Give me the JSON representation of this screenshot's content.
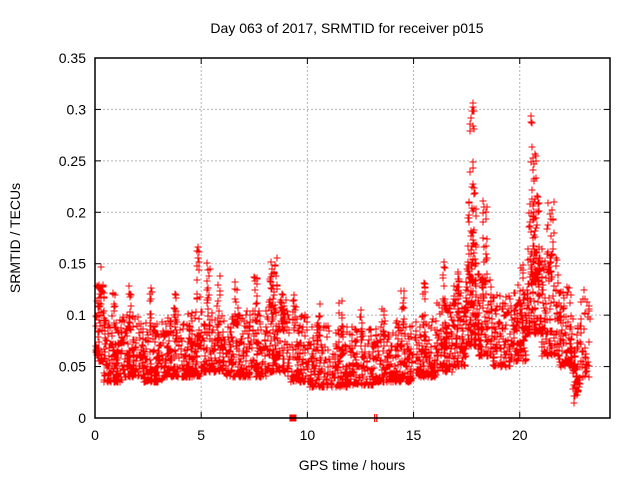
{
  "figure": {
    "background_color": "#ffffff",
    "text_color": "#000000"
  },
  "chart_data": {
    "type": "scatter",
    "title": "Day 063 of 2017, SRMTID for receiver p015",
    "xlabel": "GPS time / hours",
    "ylabel": "SRMTID / TECUs",
    "xlim": [
      0,
      24.25
    ],
    "ylim": [
      0,
      0.35
    ],
    "xticks": {
      "values": [
        0,
        5,
        10,
        15,
        20
      ],
      "labels": [
        "0",
        "5",
        "10",
        "15",
        "20"
      ]
    },
    "yticks": {
      "values": [
        0,
        0.05,
        0.1,
        0.15,
        0.2,
        0.25,
        0.3,
        0.35
      ],
      "labels": [
        "0",
        "0.05",
        "0.1",
        "0.15",
        "0.2",
        "0.25",
        "0.3",
        "0.35"
      ]
    },
    "grid": {
      "visible": true,
      "color": "#b4b4b4",
      "dash": [
        2,
        2
      ]
    },
    "frame_color": "#000000",
    "legend": {
      "visible": false
    },
    "marker": {
      "shape": "plus",
      "color": "#ff0000",
      "size": 7,
      "stroke_width": 1
    },
    "series_name": "SRMTID",
    "cluster_format": "[x_start_hours, x_end_hours, n_points, y_min_TECU, y_max_TECU, low_bias_skew]",
    "point_generator": {
      "seed": 20170063,
      "clusters": [
        [
          0.05,
          0.5,
          70,
          0.055,
          0.135,
          1.6
        ],
        [
          0.1,
          0.3,
          8,
          0.1,
          0.148,
          1.0
        ],
        [
          0.4,
          1.3,
          120,
          0.035,
          0.095,
          1.8
        ],
        [
          0.8,
          1.0,
          10,
          0.08,
          0.122,
          1.2
        ],
        [
          1.3,
          2.3,
          130,
          0.04,
          0.1,
          1.8
        ],
        [
          1.55,
          1.7,
          12,
          0.09,
          0.13,
          1.2
        ],
        [
          2.3,
          3.3,
          125,
          0.035,
          0.095,
          1.8
        ],
        [
          2.55,
          2.7,
          12,
          0.085,
          0.128,
          1.2
        ],
        [
          3.3,
          4.3,
          120,
          0.04,
          0.1,
          1.8
        ],
        [
          3.7,
          3.85,
          10,
          0.09,
          0.122,
          1.2
        ],
        [
          4.3,
          5.1,
          110,
          0.04,
          0.105,
          1.8
        ],
        [
          4.75,
          4.95,
          16,
          0.095,
          0.168,
          1.1
        ],
        [
          5.1,
          6.1,
          120,
          0.045,
          0.105,
          1.8
        ],
        [
          5.25,
          5.4,
          14,
          0.095,
          0.152,
          1.1
        ],
        [
          5.75,
          5.9,
          10,
          0.09,
          0.14,
          1.2
        ],
        [
          6.1,
          7.1,
          120,
          0.04,
          0.1,
          1.8
        ],
        [
          6.6,
          6.8,
          14,
          0.09,
          0.137,
          1.2
        ],
        [
          7.1,
          8.1,
          120,
          0.04,
          0.105,
          1.8
        ],
        [
          7.5,
          7.65,
          12,
          0.095,
          0.147,
          1.1
        ],
        [
          8.1,
          9.1,
          130,
          0.045,
          0.115,
          1.7
        ],
        [
          8.25,
          8.6,
          30,
          0.1,
          0.158,
          1.0
        ],
        [
          8.75,
          8.9,
          10,
          0.09,
          0.126,
          1.2
        ],
        [
          9.1,
          10.1,
          110,
          0.035,
          0.1,
          1.9
        ],
        [
          9.3,
          9.45,
          10,
          0.085,
          0.122,
          1.2
        ],
        [
          10.1,
          11.1,
          110,
          0.03,
          0.09,
          1.9
        ],
        [
          10.45,
          10.6,
          10,
          0.08,
          0.115,
          1.2
        ],
        [
          11.1,
          12.1,
          110,
          0.03,
          0.09,
          1.9
        ],
        [
          11.5,
          11.65,
          10,
          0.08,
          0.115,
          1.2
        ],
        [
          12.1,
          13.1,
          110,
          0.032,
          0.09,
          1.9
        ],
        [
          12.45,
          12.6,
          8,
          0.078,
          0.108,
          1.2
        ],
        [
          13.1,
          14.1,
          110,
          0.035,
          0.092,
          1.9
        ],
        [
          13.5,
          13.65,
          8,
          0.08,
          0.108,
          1.2
        ],
        [
          14.1,
          15.1,
          115,
          0.035,
          0.096,
          1.8
        ],
        [
          14.4,
          14.55,
          10,
          0.085,
          0.126,
          1.2
        ],
        [
          15.1,
          16.1,
          120,
          0.04,
          0.1,
          1.8
        ],
        [
          15.45,
          15.6,
          10,
          0.09,
          0.132,
          1.2
        ],
        [
          16.1,
          16.9,
          110,
          0.045,
          0.112,
          1.7
        ],
        [
          16.35,
          16.5,
          12,
          0.1,
          0.152,
          1.1
        ],
        [
          16.9,
          17.45,
          90,
          0.05,
          0.13,
          1.5
        ],
        [
          17.0,
          17.15,
          10,
          0.115,
          0.172,
          1.0
        ],
        [
          17.45,
          18.05,
          95,
          0.07,
          0.145,
          1.5
        ],
        [
          17.55,
          17.95,
          60,
          0.13,
          0.225,
          1.3
        ],
        [
          17.65,
          17.85,
          14,
          0.225,
          0.325,
          1.0
        ],
        [
          18.05,
          18.65,
          85,
          0.06,
          0.14,
          1.6
        ],
        [
          18.25,
          18.45,
          18,
          0.135,
          0.212,
          1.1
        ],
        [
          18.65,
          19.65,
          115,
          0.05,
          0.12,
          1.7
        ],
        [
          19.65,
          20.35,
          105,
          0.055,
          0.135,
          1.6
        ],
        [
          20.05,
          20.2,
          10,
          0.1,
          0.152,
          1.1
        ],
        [
          20.35,
          21.05,
          100,
          0.08,
          0.165,
          1.4
        ],
        [
          20.45,
          20.95,
          70,
          0.13,
          0.235,
          1.2
        ],
        [
          20.5,
          20.8,
          12,
          0.235,
          0.302,
          1.0
        ],
        [
          21.05,
          21.85,
          100,
          0.06,
          0.16,
          1.6
        ],
        [
          21.3,
          21.6,
          22,
          0.14,
          0.212,
          1.1
        ],
        [
          21.85,
          22.45,
          90,
          0.05,
          0.13,
          1.7
        ],
        [
          22.45,
          22.85,
          50,
          0.025,
          0.105,
          1.4
        ],
        [
          22.55,
          22.7,
          12,
          0.014,
          0.055,
          1.2
        ],
        [
          22.85,
          23.35,
          40,
          0.04,
          0.125,
          1.5
        ]
      ]
    },
    "special_points": [
      {
        "x": 9.32,
        "y": 0,
        "marker": "filled-square",
        "color": "#ff0000"
      },
      {
        "x": 13.17,
        "y": 0,
        "marker": "vtick",
        "color": "#ff0000"
      },
      {
        "x": 13.27,
        "y": 0,
        "marker": "vtick",
        "color": "#ff0000"
      }
    ],
    "annotations": {
      "peak_1": {
        "x": 17.75,
        "y_max": 0.325
      },
      "peak_2": {
        "x": 20.65,
        "y_max": 0.3
      }
    }
  }
}
